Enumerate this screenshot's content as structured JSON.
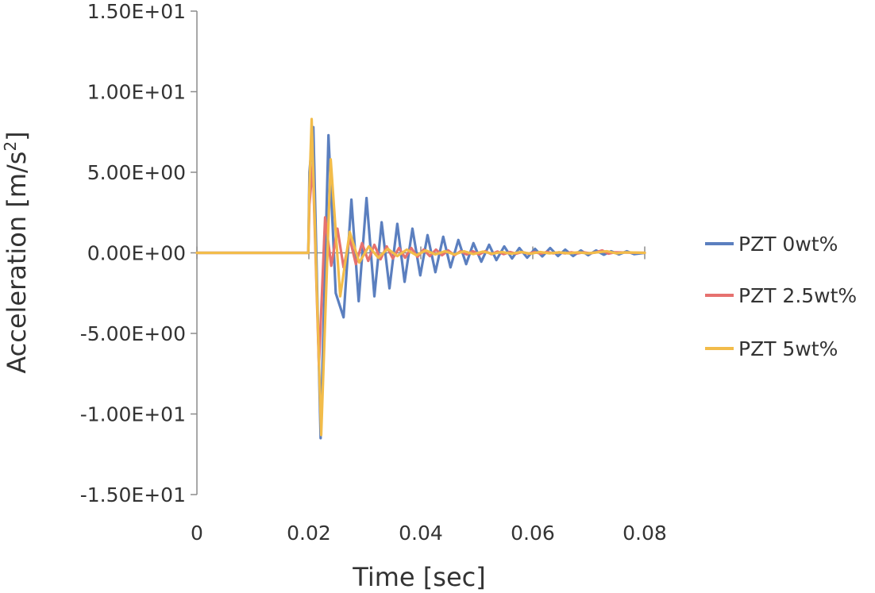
{
  "chart_data": {
    "type": "line",
    "xlabel": "Time [sec]",
    "ylabel_main": "Acceleration [m/s",
    "ylabel_sup": "2",
    "ylabel_end": "]",
    "xlim": [
      0,
      0.08
    ],
    "ylim": [
      -15,
      15
    ],
    "x_ticks": [
      0,
      0.02,
      0.04,
      0.06,
      0.08
    ],
    "x_tick_labels": [
      "0",
      "0.02",
      "0.04",
      "0.06",
      "0.08"
    ],
    "y_ticks": [
      15,
      10,
      5,
      0,
      -5,
      -10,
      -15
    ],
    "y_tick_labels": [
      "1.50E+01",
      "1.00E+01",
      "5.00E+00",
      "0.00E+00",
      "-5.00E+00",
      "-1.00E+01",
      "-1.50E+01"
    ],
    "grid": false,
    "legend_position": "right",
    "series": [
      {
        "name": "PZT 0wt%",
        "color": "#5b7fbf",
        "x": [
          0,
          0.0199,
          0.0201,
          0.0208,
          0.0221,
          0.0235,
          0.0248,
          0.0262,
          0.0276,
          0.0289,
          0.0303,
          0.0317,
          0.033,
          0.0344,
          0.0358,
          0.0371,
          0.0385,
          0.0399,
          0.0412,
          0.0426,
          0.044,
          0.0453,
          0.0467,
          0.0481,
          0.0494,
          0.0508,
          0.0522,
          0.0535,
          0.0549,
          0.0563,
          0.0576,
          0.059,
          0.0604,
          0.0617,
          0.0631,
          0.0645,
          0.0658,
          0.0672,
          0.0686,
          0.0699,
          0.0713,
          0.0727,
          0.074,
          0.0754,
          0.0768,
          0.0781,
          0.08
        ],
        "y": [
          0,
          0,
          5,
          7.8,
          -11.5,
          7.3,
          -2.5,
          -4.0,
          3.3,
          -3.0,
          3.4,
          -2.7,
          1.9,
          -2.2,
          1.8,
          -1.8,
          1.5,
          -1.4,
          1.1,
          -1.2,
          1.0,
          -0.9,
          0.8,
          -0.7,
          0.6,
          -0.55,
          0.5,
          -0.45,
          0.4,
          -0.35,
          0.3,
          -0.3,
          0.25,
          -0.22,
          0.3,
          -0.2,
          0.2,
          -0.2,
          0.15,
          -0.15,
          0.15,
          -0.12,
          0.1,
          -0.1,
          0.1,
          -0.08,
          0
        ]
      },
      {
        "name": "PZT 2.5wt%",
        "color": "#e6716f",
        "x": [
          0,
          0.0199,
          0.0201,
          0.0207,
          0.0218,
          0.0229,
          0.024,
          0.0251,
          0.0262,
          0.0273,
          0.0284,
          0.0295,
          0.0306,
          0.0317,
          0.0328,
          0.0339,
          0.035,
          0.0361,
          0.0372,
          0.0383,
          0.0394,
          0.0405,
          0.0416,
          0.0427,
          0.0438,
          0.0449,
          0.046,
          0.0471,
          0.0482,
          0.0493,
          0.0504,
          0.0515,
          0.0526,
          0.0537,
          0.0548,
          0.0559,
          0.057,
          0.0581,
          0.0592,
          0.0603,
          0.0614,
          0.0625,
          0.0636,
          0.0647,
          0.0658,
          0.0669,
          0.068,
          0.0691,
          0.0702,
          0.0713,
          0.0724,
          0.0735,
          0.0746,
          0.08
        ],
        "y": [
          0,
          0,
          3,
          5.5,
          -7.0,
          2.2,
          -0.8,
          1.5,
          -0.9,
          0.9,
          -0.7,
          0.6,
          -0.5,
          0.5,
          -0.4,
          0.4,
          -0.35,
          0.3,
          -0.3,
          0.3,
          -0.25,
          0.2,
          -0.2,
          0.2,
          -0.15,
          0.15,
          -0.15,
          0.1,
          -0.1,
          0.1,
          -0.1,
          0.1,
          -0.08,
          0.08,
          -0.08,
          0.05,
          -0.05,
          0.05,
          -0.05,
          0.05,
          -0.05,
          0.05,
          -0.03,
          0.03,
          -0.03,
          0.03,
          -0.03,
          0.03,
          -0.03,
          0.03,
          0.15,
          -0.05,
          0.03,
          0
        ]
      },
      {
        "name": "PZT 5wt%",
        "color": "#f2bc4a",
        "x": [
          0,
          0.0199,
          0.0201,
          0.0205,
          0.0222,
          0.0239,
          0.0256,
          0.0273,
          0.029,
          0.0307,
          0.0324,
          0.0341,
          0.0358,
          0.0375,
          0.0392,
          0.0409,
          0.0426,
          0.0443,
          0.046,
          0.0477,
          0.0494,
          0.0511,
          0.0528,
          0.0545,
          0.0562,
          0.0579,
          0.0596,
          0.0613,
          0.063,
          0.0647,
          0.0664,
          0.0681,
          0.0698,
          0.0715,
          0.0732,
          0.0749,
          0.0766,
          0.08
        ],
        "y": [
          0,
          0,
          4,
          8.3,
          -11.3,
          5.8,
          -2.7,
          1.3,
          -0.6,
          0.4,
          -0.3,
          0.25,
          -0.2,
          0.2,
          -0.15,
          0.15,
          -0.1,
          0.1,
          -0.1,
          0.1,
          -0.08,
          0.08,
          -0.05,
          0.05,
          -0.05,
          0.05,
          -0.05,
          0.05,
          -0.03,
          0.03,
          -0.03,
          0.03,
          -0.03,
          0.03,
          0.1,
          -0.03,
          0.03,
          0
        ]
      }
    ]
  }
}
